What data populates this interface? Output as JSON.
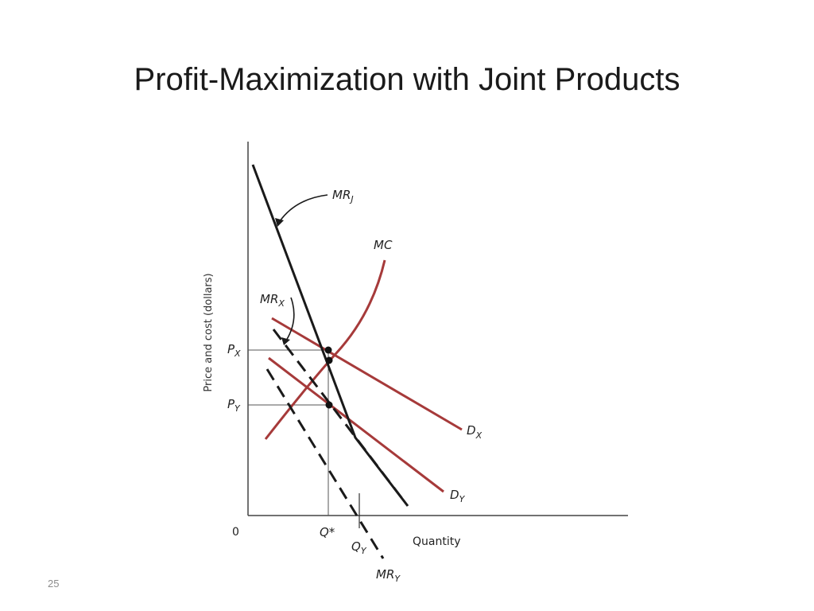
{
  "slide": {
    "title": "Profit-Maximization with Joint Products",
    "number": "25"
  },
  "diagram": {
    "y_axis_title": "Price and cost (dollars)",
    "x_axis_title": "Quantity",
    "origin_label": "0",
    "price_labels": [
      {
        "base": "P",
        "sub": "X"
      },
      {
        "base": "P",
        "sub": "Y"
      }
    ],
    "quantity_labels": [
      {
        "base": "Q*",
        "sub": ""
      },
      {
        "base": "Q",
        "sub": "Y"
      }
    ],
    "curves": [
      {
        "id": "mrj",
        "base": "MR",
        "sub": "J",
        "color": "#1a1a1a",
        "style": "solid"
      },
      {
        "id": "mc",
        "base": "MC",
        "sub": "",
        "color": "#a63a3a",
        "style": "solid"
      },
      {
        "id": "mrx",
        "base": "MR",
        "sub": "X",
        "color": "#1a1a1a",
        "style": "dashed"
      },
      {
        "id": "dx",
        "base": "D",
        "sub": "X",
        "color": "#a63a3a",
        "style": "solid"
      },
      {
        "id": "dy",
        "base": "D",
        "sub": "Y",
        "color": "#a63a3a",
        "style": "solid"
      },
      {
        "id": "mry",
        "base": "MR",
        "sub": "Y",
        "color": "#1a1a1a",
        "style": "dashed"
      }
    ]
  }
}
